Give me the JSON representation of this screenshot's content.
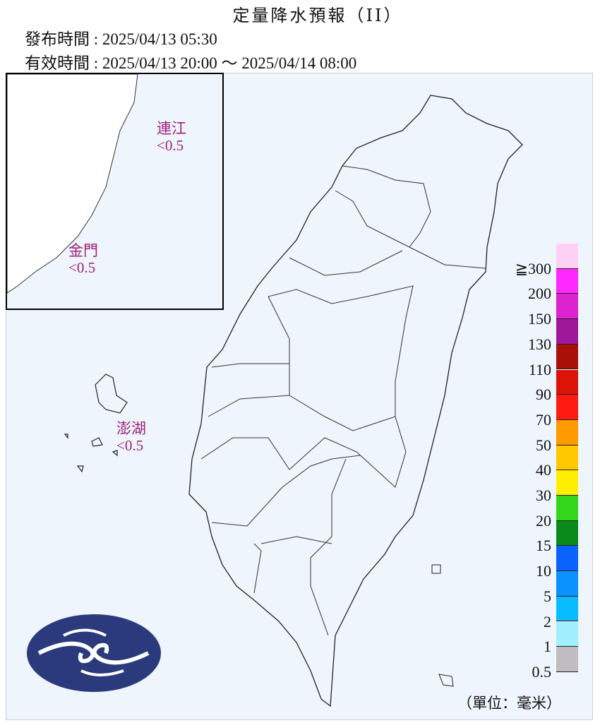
{
  "header": {
    "title": "定量降水預報（II）",
    "issue_time": "發布時間 : 2025/04/13 05:30",
    "valid_time": "有效時間 : 2025/04/13 20:00 ～ 2025/04/14 08:00"
  },
  "regions": [
    {
      "name": "連江",
      "value": "<0.5"
    },
    {
      "name": "金門",
      "value": "<0.5"
    },
    {
      "name": "澎湖",
      "value": "<0.5"
    }
  ],
  "legend": {
    "unit": "（單位：毫米）",
    "labels": [
      "≧300",
      "200",
      "150",
      "130",
      "110",
      "90",
      "70",
      "50",
      "40",
      "30",
      "20",
      "15",
      "10",
      "5",
      "2",
      "1",
      "0.5"
    ],
    "colors": [
      "#fdd0f5",
      "#ff28ff",
      "#dd22d0",
      "#a0189a",
      "#a81008",
      "#dc1408",
      "#ff1a10",
      "#ff9a00",
      "#ffc800",
      "#ffee00",
      "#33d61a",
      "#0a8a1a",
      "#0c62ff",
      "#0c92ff",
      "#08bcff",
      "#a0f0ff",
      "#c0bcc0"
    ]
  },
  "colors": {
    "label": "#a02080",
    "sea": "#eef5fc",
    "logo": "#2a3a7c"
  },
  "logo_icon": "cwa-logo-icon"
}
